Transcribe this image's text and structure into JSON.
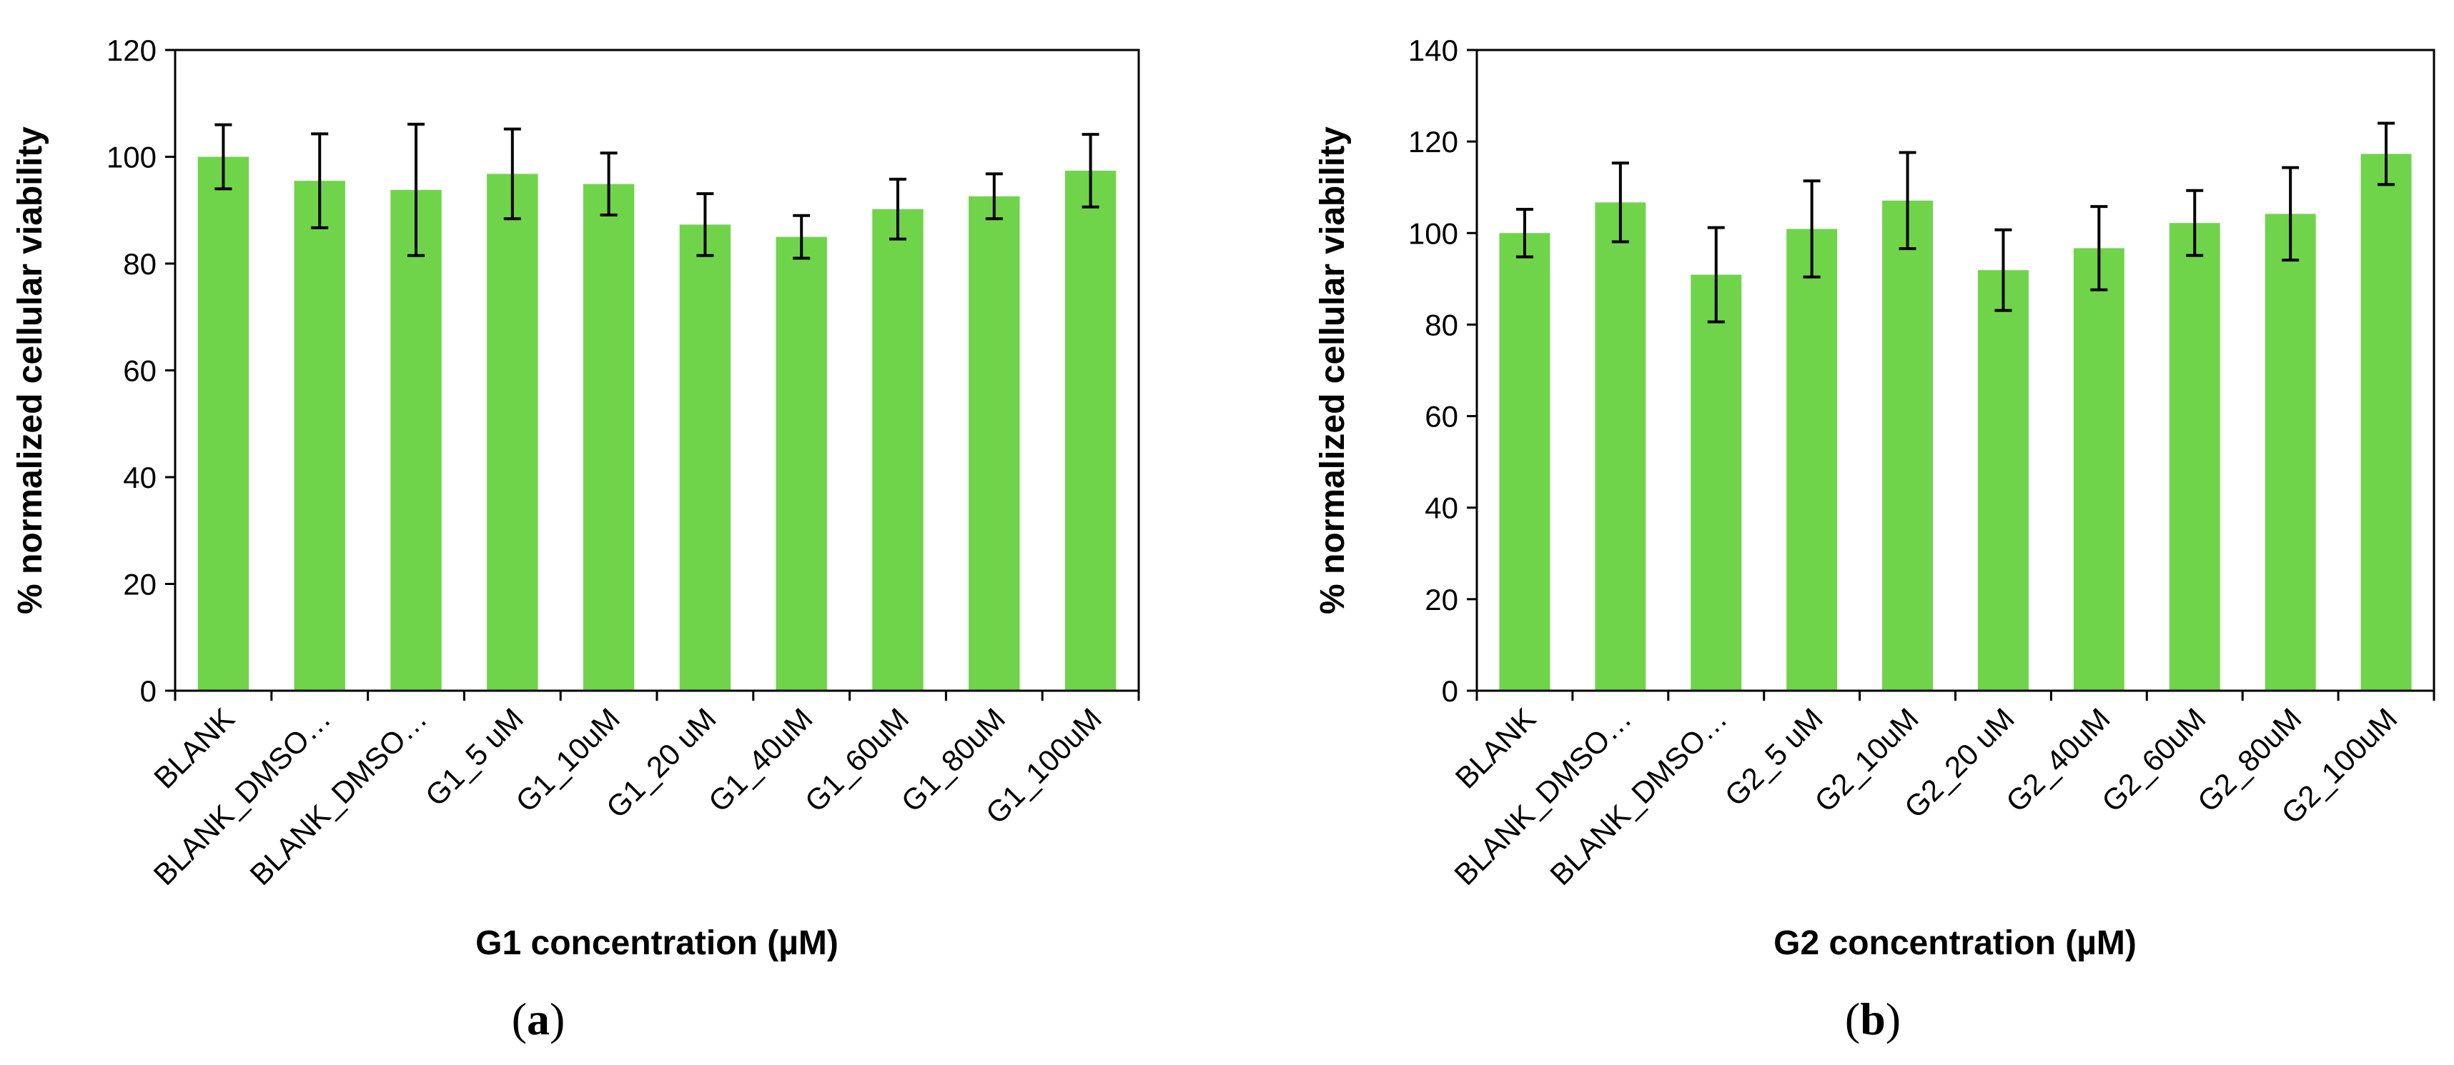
{
  "figure": {
    "bar_color": "#70d44b",
    "panels": [
      {
        "paren_open": "(",
        "letter": "a",
        "paren_close": ")"
      },
      {
        "paren_open": "(",
        "letter": "b",
        "paren_close": ")"
      }
    ]
  },
  "chart_data": [
    {
      "type": "bar",
      "title": "",
      "xlabel": "G1 concentration (µM)",
      "ylabel": "% normalized cellular viability",
      "ylim": [
        0,
        120
      ],
      "yticks": [
        0,
        20,
        40,
        60,
        80,
        100,
        120
      ],
      "grid": false,
      "categories": [
        "BLANK",
        "BLANK_DMSO…",
        "BLANK_DMSO…",
        "G1_5 uM",
        "G1_10uM",
        "G1_20 uM",
        "G1_40uM",
        "G1_60uM",
        "G1_80uM",
        "G1_100uM"
      ],
      "values": [
        100,
        95.5,
        93.8,
        96.8,
        94.9,
        87.3,
        85.0,
        90.2,
        92.6,
        97.4
      ],
      "errors": [
        6.0,
        8.8,
        12.3,
        8.4,
        5.8,
        5.8,
        4.0,
        5.6,
        4.2,
        6.8
      ]
    },
    {
      "type": "bar",
      "title": "",
      "xlabel": "G2 concentration (µM)",
      "ylabel": "% normalized cellular viability",
      "ylim": [
        0,
        140
      ],
      "yticks": [
        0,
        20,
        40,
        60,
        80,
        100,
        120,
        140
      ],
      "grid": false,
      "categories": [
        "BLANK",
        "BLANK_DMSO…",
        "BLANK_DMSO…",
        "G2_5 uM",
        "G2_10uM",
        "G2_20 uM",
        "G2_40uM",
        "G2_60uM",
        "G2_80uM",
        "G2_100uM"
      ],
      "values": [
        100,
        106.7,
        90.9,
        100.9,
        107.1,
        91.9,
        96.7,
        102.2,
        104.2,
        117.3
      ],
      "errors": [
        5.2,
        8.6,
        10.3,
        10.5,
        10.5,
        8.8,
        9.1,
        7.1,
        10.1,
        6.7
      ]
    }
  ]
}
